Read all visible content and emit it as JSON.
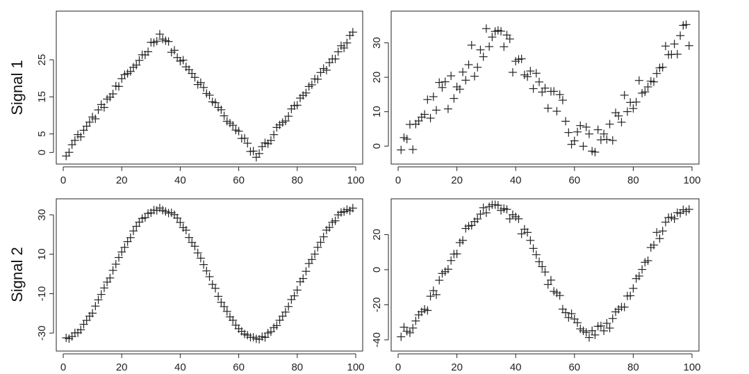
{
  "row_labels": [
    "Signal 1",
    "Signal 2"
  ],
  "chart_data": [
    {
      "type": "scatter",
      "marker": "plus",
      "row": "Signal 1",
      "xlim": [
        0,
        100
      ],
      "ylim": [
        -2,
        37
      ],
      "xticks": [
        0,
        20,
        40,
        60,
        80,
        100
      ],
      "yticks": [
        0,
        5,
        15,
        25
      ],
      "formula": "triangle",
      "params": {
        "amp": 33,
        "offset": -1,
        "period": 66,
        "noise": 1.0,
        "n": 99
      }
    },
    {
      "type": "scatter",
      "marker": "plus",
      "row": "Signal 1",
      "xlim": [
        0,
        100
      ],
      "ylim": [
        -4,
        38
      ],
      "xticks": [
        0,
        20,
        40,
        60,
        80,
        100
      ],
      "yticks": [
        0,
        10,
        20,
        30
      ],
      "formula": "triangle",
      "params": {
        "amp": 33,
        "offset": -1,
        "period": 66,
        "noise": 5.5,
        "n": 99,
        "clip": [
          -3,
          37
        ]
      }
    },
    {
      "type": "scatter",
      "marker": "plus",
      "row": "Signal 2",
      "xlim": [
        0,
        100
      ],
      "ylim": [
        -37,
        36
      ],
      "xticks": [
        0,
        20,
        40,
        60,
        80,
        100
      ],
      "yticks": [
        -30,
        -10,
        10,
        30
      ],
      "formula": "cosine",
      "params": {
        "amp": 33,
        "period": 66,
        "noise": 0.8,
        "n": 99
      }
    },
    {
      "type": "scatter",
      "marker": "plus",
      "row": "Signal 2",
      "xlim": [
        0,
        100
      ],
      "ylim": [
        -44,
        38
      ],
      "xticks": [
        0,
        20,
        40,
        60,
        80,
        100
      ],
      "yticks": [
        -40,
        -20,
        0,
        20
      ],
      "formula": "cosine",
      "params": {
        "amp": 36,
        "period": 66,
        "noise": 3.5,
        "n": 99,
        "clip": [
          -42,
          37
        ]
      }
    }
  ]
}
